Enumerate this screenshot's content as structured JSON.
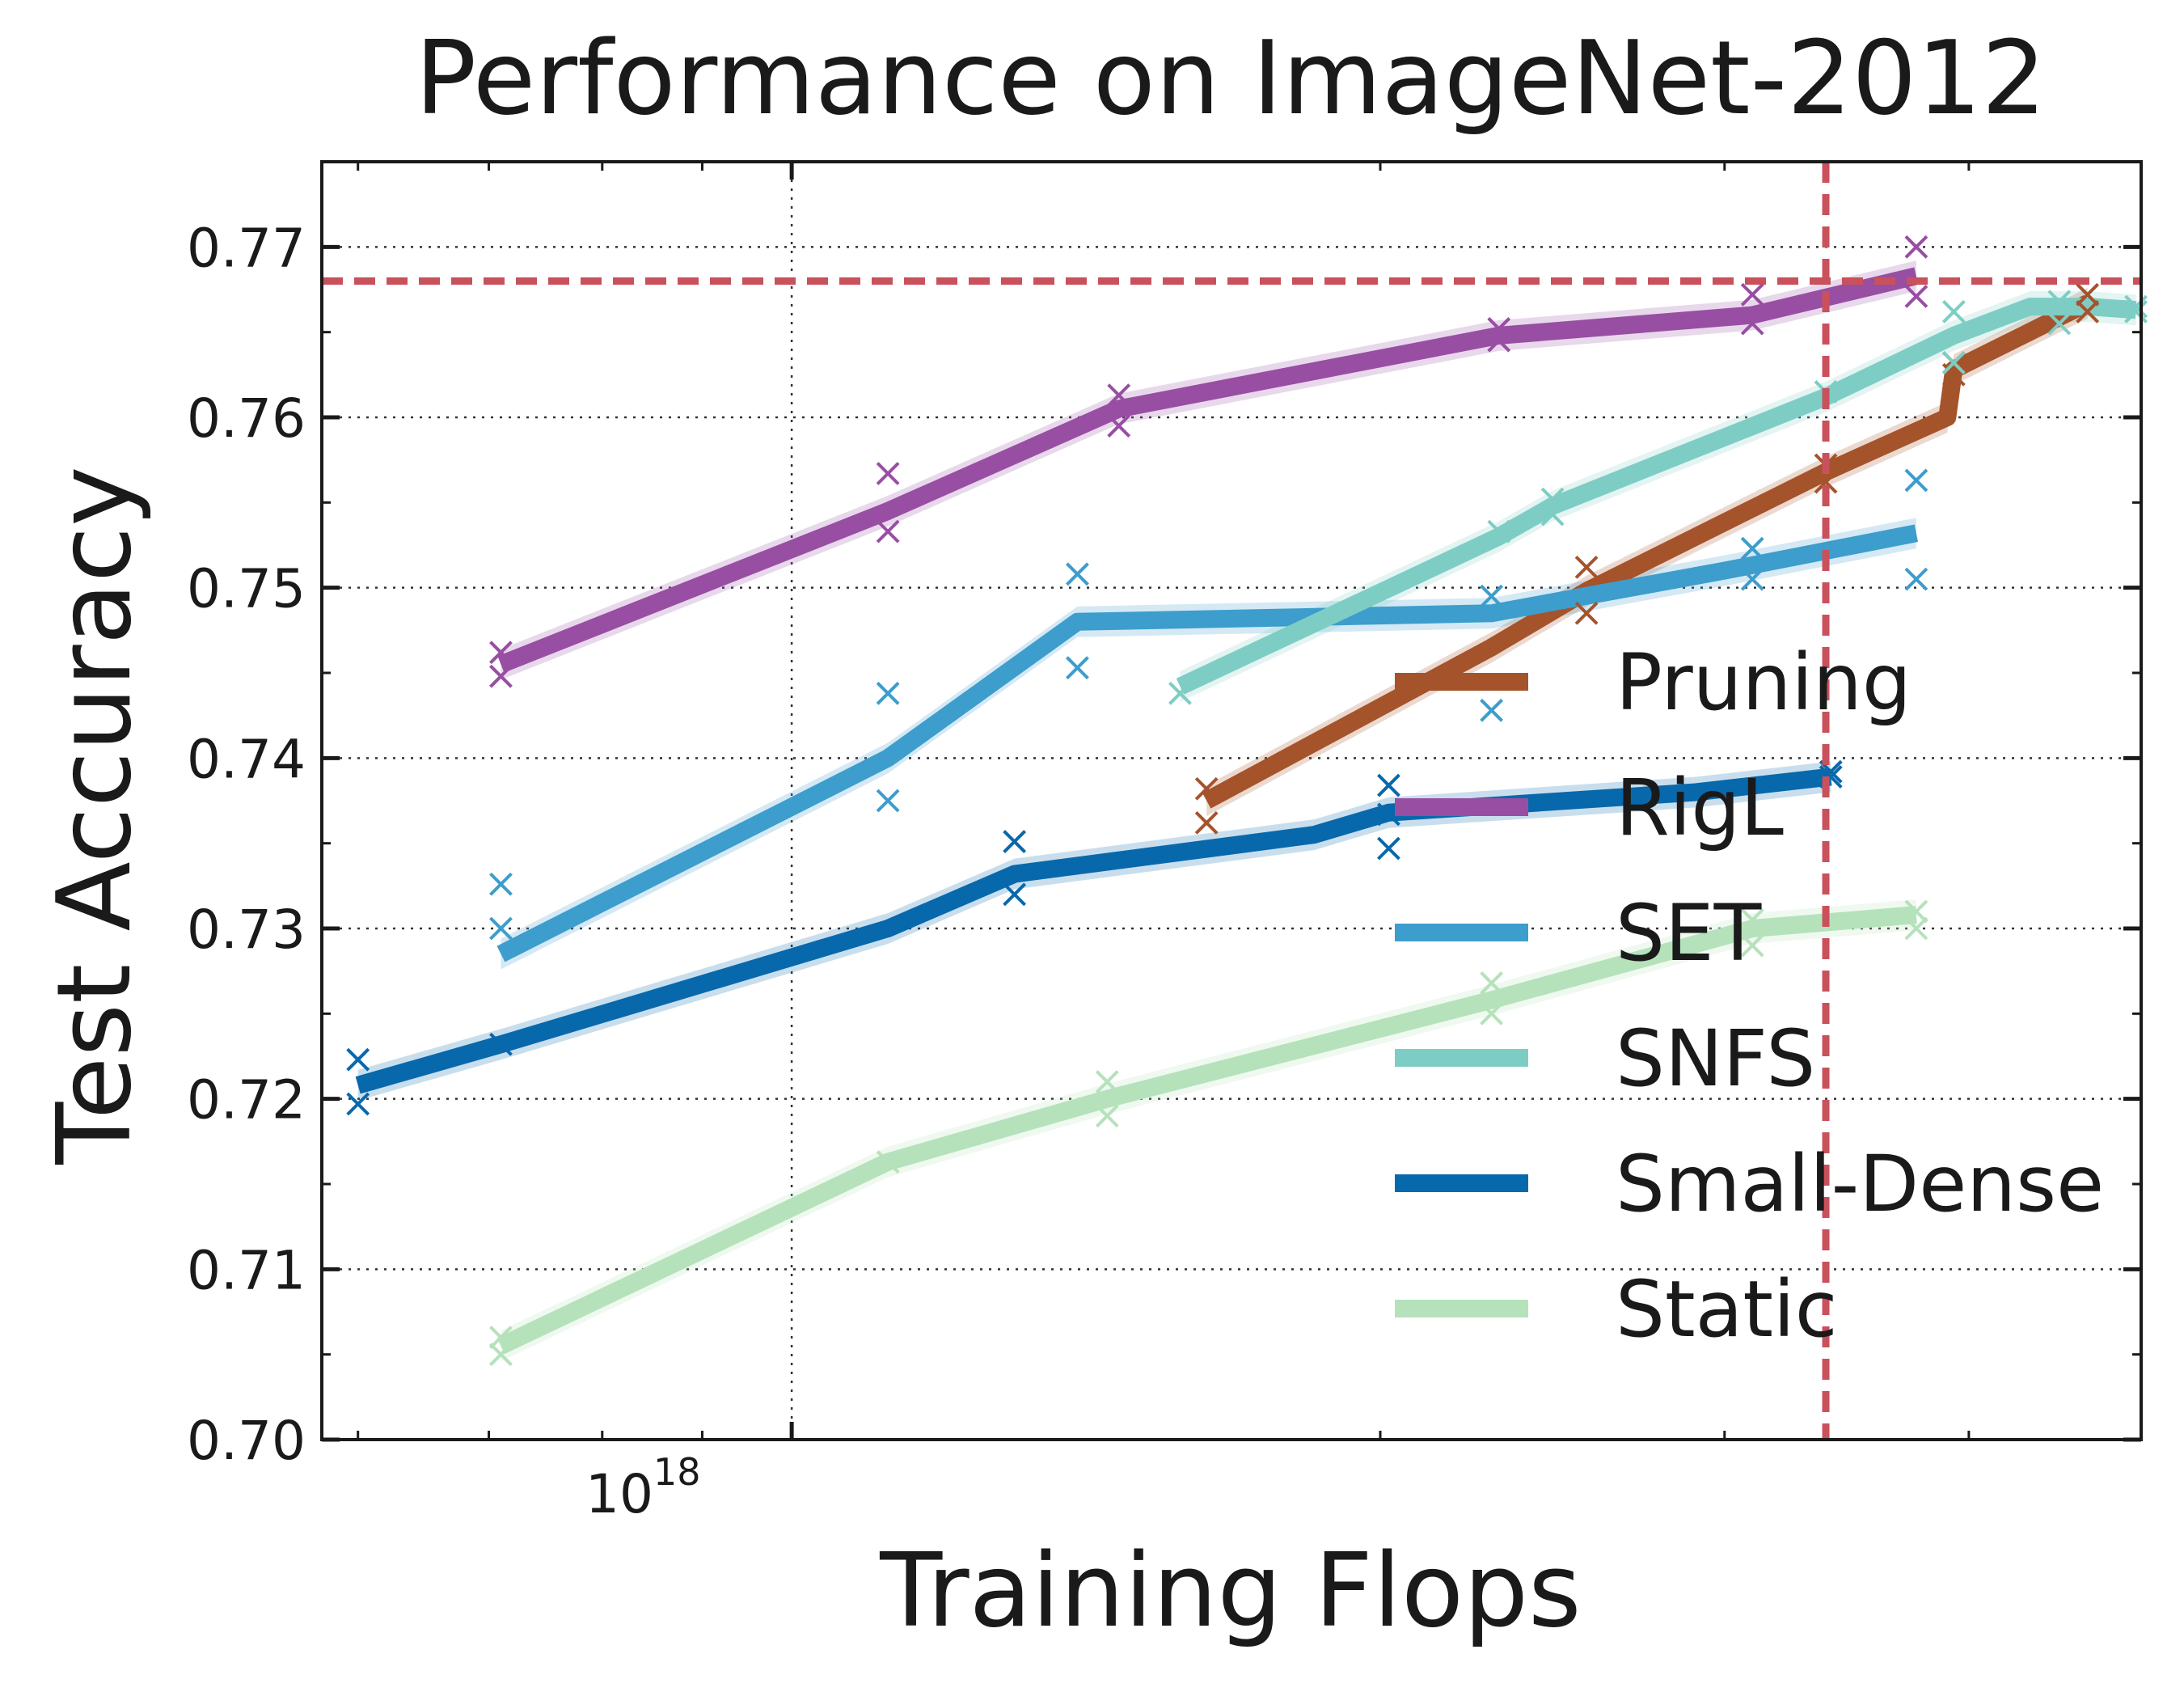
{
  "chart_data": {
    "type": "line",
    "title": "Performance on ImageNet-2012",
    "xlabel": "Training Flops",
    "ylabel": "Test Accuracy",
    "xscale": "log",
    "xlim": [
      5.75e+17,
      4.9e+18
    ],
    "ylim": [
      0.7,
      0.775
    ],
    "yticks": [
      0.7,
      0.71,
      0.72,
      0.73,
      0.74,
      0.75,
      0.76,
      0.77
    ],
    "ytick_labels": [
      "0.70",
      "0.71",
      "0.72",
      "0.73",
      "0.74",
      "0.75",
      "0.76",
      "0.77"
    ],
    "xtick_major": [
      1e+18
    ],
    "xtick_base": "10",
    "xtick_exponent": "18",
    "grid": true,
    "legend_position": "lower-right",
    "reference_lines": {
      "horizontal_y": 0.768,
      "vertical_x": 3.38e+18,
      "color": "#c9515c"
    },
    "series": [
      {
        "name": "Pruning",
        "color": "#a5532b",
        "x": [
          1.63e+18,
          2.28e+18,
          2.55e+18,
          3.38e+18,
          3.9e+18,
          3.93e+18,
          4.6e+18
        ],
        "y": [
          0.7375,
          0.7465,
          0.7498,
          0.7568,
          0.76,
          0.7628,
          0.7667
        ],
        "samples": [
          [
            1.63e+18,
            0.7382
          ],
          [
            1.63e+18,
            0.7362
          ],
          [
            2.55e+18,
            0.7512
          ],
          [
            2.55e+18,
            0.7485
          ],
          [
            3.38e+18,
            0.7572
          ],
          [
            3.38e+18,
            0.7562
          ],
          [
            3.93e+18,
            0.7632
          ],
          [
            3.93e+18,
            0.7625
          ],
          [
            4.6e+18,
            0.7672
          ],
          [
            4.6e+18,
            0.7662
          ]
        ]
      },
      {
        "name": "RigL",
        "color": "#984ea3",
        "x": [
          7.1e+17,
          1.12e+18,
          1.47e+18,
          2.3e+18,
          3.1e+18,
          3.76e+18
        ],
        "y": [
          0.7455,
          0.7545,
          0.7605,
          0.7648,
          0.766,
          0.7683
        ],
        "samples": [
          [
            7.1e+17,
            0.7462
          ],
          [
            7.1e+17,
            0.7448
          ],
          [
            1.12e+18,
            0.7567
          ],
          [
            1.12e+18,
            0.7533
          ],
          [
            1.47e+18,
            0.7613
          ],
          [
            1.47e+18,
            0.7595
          ],
          [
            2.3e+18,
            0.7652
          ],
          [
            2.3e+18,
            0.7645
          ],
          [
            3.1e+18,
            0.7672
          ],
          [
            3.1e+18,
            0.7655
          ],
          [
            3.76e+18,
            0.77
          ],
          [
            3.76e+18,
            0.7671
          ]
        ]
      },
      {
        "name": "SET",
        "color": "#3d9dcc",
        "x": [
          7.1e+17,
          1.12e+18,
          1.4e+18,
          2.28e+18,
          3e+18,
          3.76e+18
        ],
        "y": [
          0.7285,
          0.74,
          0.748,
          0.7485,
          0.751,
          0.7532
        ],
        "samples": [
          [
            7.1e+17,
            0.7326
          ],
          [
            7.1e+17,
            0.73
          ],
          [
            1.12e+18,
            0.7438
          ],
          [
            1.12e+18,
            0.7375
          ],
          [
            1.4e+18,
            0.7508
          ],
          [
            1.4e+18,
            0.7453
          ],
          [
            2.28e+18,
            0.7495
          ],
          [
            2.28e+18,
            0.7428
          ],
          [
            3.1e+18,
            0.7523
          ],
          [
            3.1e+18,
            0.7505
          ],
          [
            3.76e+18,
            0.7563
          ],
          [
            3.76e+18,
            0.7505
          ]
        ]
      },
      {
        "name": "SNFS",
        "color": "#7ecdc4",
        "x": [
          1.58e+18,
          2.3e+18,
          2.45e+18,
          3.38e+18,
          3.93e+18,
          4.3e+18,
          4.6e+18,
          4.87e+18
        ],
        "y": [
          0.7442,
          0.753,
          0.7548,
          0.7612,
          0.7648,
          0.7665,
          0.7665,
          0.7663
        ],
        "samples": [
          [
            1.58e+18,
            0.7438
          ],
          [
            2.3e+18,
            0.7533
          ],
          [
            2.45e+18,
            0.7552
          ],
          [
            2.45e+18,
            0.7543
          ],
          [
            3.38e+18,
            0.7615
          ],
          [
            3.93e+18,
            0.7662
          ],
          [
            3.93e+18,
            0.7632
          ],
          [
            4.45e+18,
            0.7668
          ],
          [
            4.45e+18,
            0.7655
          ],
          [
            4.87e+18,
            0.7665
          ],
          [
            4.87e+18,
            0.7662
          ]
        ]
      },
      {
        "name": "Small-Dense",
        "color": "#0868ac",
        "x": [
          6e+17,
          7.1e+17,
          1.12e+18,
          1.3e+18,
          1.85e+18,
          2.02e+18,
          2.9e+18,
          3.4e+18
        ],
        "y": [
          0.7208,
          0.7232,
          0.73,
          0.7332,
          0.7355,
          0.7368,
          0.738,
          0.7389
        ],
        "samples": [
          [
            6e+17,
            0.7223
          ],
          [
            6e+17,
            0.7197
          ],
          [
            7.1e+17,
            0.7232
          ],
          [
            1.3e+18,
            0.7351
          ],
          [
            1.3e+18,
            0.732
          ],
          [
            2.02e+18,
            0.7384
          ],
          [
            2.02e+18,
            0.7367
          ],
          [
            2.02e+18,
            0.7347
          ],
          [
            3.4e+18,
            0.7392
          ],
          [
            3.4e+18,
            0.7389
          ]
        ]
      },
      {
        "name": "Static",
        "color": "#b5e2bb",
        "x": [
          7.1e+17,
          1.12e+18,
          1.45e+18,
          2.28e+18,
          3.1e+18,
          3.76e+18
        ],
        "y": [
          0.7055,
          0.7163,
          0.72,
          0.7258,
          0.73,
          0.7308
        ],
        "samples": [
          [
            7.1e+17,
            0.706
          ],
          [
            7.1e+17,
            0.705
          ],
          [
            1.12e+18,
            0.7163
          ],
          [
            1.45e+18,
            0.721
          ],
          [
            1.45e+18,
            0.719
          ],
          [
            2.28e+18,
            0.7268
          ],
          [
            2.28e+18,
            0.725
          ],
          [
            3.1e+18,
            0.7305
          ],
          [
            3.1e+18,
            0.729
          ],
          [
            3.76e+18,
            0.731
          ],
          [
            3.76e+18,
            0.73
          ]
        ]
      }
    ]
  }
}
